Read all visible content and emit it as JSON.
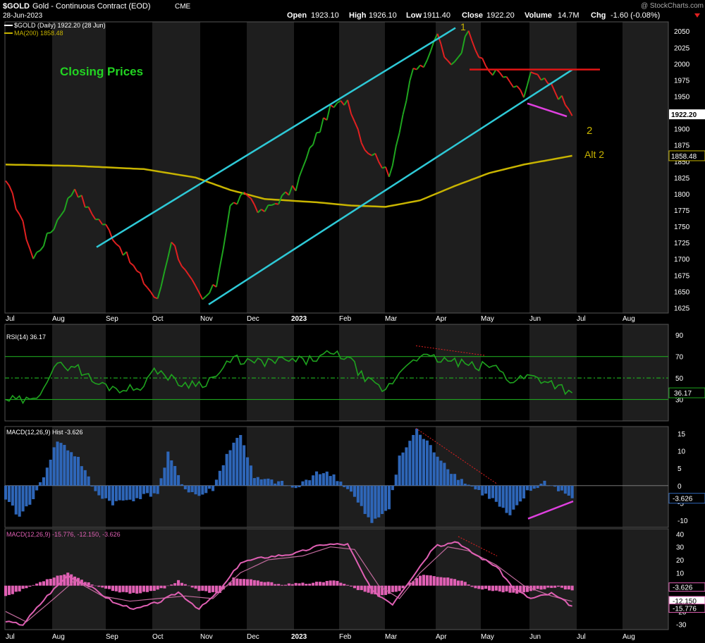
{
  "header": {
    "symbol": "$GOLD",
    "name": "Gold - Continuous Contract (EOD)",
    "exchange": "CME",
    "date": "28-Jun-2023",
    "watermark": "@ StockCharts.com",
    "open_label": "Open",
    "open": "1923.10",
    "high_label": "High",
    "high": "1926.10",
    "low_label": "Low",
    "low": "1911.40",
    "close_label": "Close",
    "close": "1922.20",
    "volume_label": "Volume",
    "volume": "14.7M",
    "chg_label": "Chg",
    "chg": "-1.60 (-0.08%)"
  },
  "colors": {
    "background": "#000000",
    "band": "#1e1e1e",
    "up": "#1fa51f",
    "down": "#e02020",
    "ma": "#c8b400",
    "channel": "#2ec9d6",
    "resistance": "#e01515",
    "divergence": "#e040e0",
    "rsi": "#1ea21e",
    "macd_hist": "#2e66b8",
    "macd2": "#e060b4",
    "label_green": "#22d422",
    "wave": "#c8b400"
  },
  "x_axis": {
    "labels": [
      "Jul",
      "Aug",
      "Sep",
      "Oct",
      "Nov",
      "Dec",
      "2023",
      "Feb",
      "Mar",
      "Apr",
      "May",
      "Jun",
      "Jul",
      "Aug"
    ],
    "bold": [
      "2023"
    ]
  },
  "chart_data": [
    {
      "type": "line",
      "panel": "price",
      "title": "$GOLD (Daily) 1922.20 (28 Jun)",
      "ma_legend": "MA(200) 1858.48",
      "annotation": "Closing Prices",
      "wave_labels": [
        "1",
        "2",
        "Alt 2"
      ],
      "y_ticks": [
        2050,
        2025,
        2000,
        1975,
        1950,
        1925,
        1900,
        1875,
        1850,
        1825,
        1800,
        1775,
        1750,
        1725,
        1700,
        1675,
        1650,
        1625
      ],
      "ylim": [
        1620,
        2060
      ],
      "last_price_tag": "1922.20",
      "ma_tag": "1858.48",
      "close_anchors": [
        [
          0,
          1820
        ],
        [
          4,
          1770
        ],
        [
          8,
          1700
        ],
        [
          14,
          1750
        ],
        [
          20,
          1810
        ],
        [
          24,
          1775
        ],
        [
          29,
          1750
        ],
        [
          33,
          1720
        ],
        [
          38,
          1680
        ],
        [
          44,
          1635
        ],
        [
          48,
          1730
        ],
        [
          52,
          1680
        ],
        [
          57,
          1635
        ],
        [
          61,
          1660
        ],
        [
          65,
          1780
        ],
        [
          70,
          1800
        ],
        [
          74,
          1770
        ],
        [
          79,
          1790
        ],
        [
          84,
          1810
        ],
        [
          89,
          1880
        ],
        [
          94,
          1930
        ],
        [
          99,
          1945
        ],
        [
          104,
          1870
        ],
        [
          108,
          1855
        ],
        [
          111,
          1825
        ],
        [
          114,
          1900
        ],
        [
          118,
          1990
        ],
        [
          122,
          2000
        ],
        [
          125,
          2050
        ],
        [
          128,
          2000
        ],
        [
          132,
          2020
        ],
        [
          134,
          2050
        ],
        [
          137,
          2010
        ],
        [
          140,
          1990
        ],
        [
          143,
          1985
        ],
        [
          147,
          1965
        ],
        [
          150,
          1950
        ],
        [
          152,
          1985
        ],
        [
          155,
          1975
        ],
        [
          158,
          1965
        ],
        [
          161,
          1945
        ],
        [
          164,
          1920
        ]
      ],
      "ma_anchors": [
        [
          0,
          1845
        ],
        [
          20,
          1843
        ],
        [
          40,
          1838
        ],
        [
          55,
          1825
        ],
        [
          65,
          1806
        ],
        [
          75,
          1792
        ],
        [
          90,
          1787
        ],
        [
          100,
          1782
        ],
        [
          110,
          1780
        ],
        [
          120,
          1790
        ],
        [
          130,
          1812
        ],
        [
          140,
          1832
        ],
        [
          150,
          1845
        ],
        [
          164,
          1858.48
        ]
      ]
    },
    {
      "type": "line",
      "panel": "rsi",
      "title": "RSI(14) 36.17",
      "y_ticks": [
        90,
        70,
        50,
        30
      ],
      "ylim": [
        10,
        100
      ],
      "reference_lines": [
        70,
        50,
        30
      ],
      "last_value_tag": "36.17",
      "anchors": [
        [
          0,
          30
        ],
        [
          8,
          28
        ],
        [
          14,
          60
        ],
        [
          20,
          62
        ],
        [
          26,
          45
        ],
        [
          33,
          40
        ],
        [
          38,
          40
        ],
        [
          44,
          58
        ],
        [
          50,
          45
        ],
        [
          57,
          45
        ],
        [
          61,
          52
        ],
        [
          66,
          68
        ],
        [
          72,
          64
        ],
        [
          80,
          66
        ],
        [
          87,
          66
        ],
        [
          94,
          72
        ],
        [
          99,
          70
        ],
        [
          104,
          48
        ],
        [
          110,
          38
        ],
        [
          114,
          55
        ],
        [
          118,
          70
        ],
        [
          124,
          68
        ],
        [
          130,
          65
        ],
        [
          136,
          60
        ],
        [
          141,
          62
        ],
        [
          146,
          48
        ],
        [
          152,
          52
        ],
        [
          158,
          46
        ],
        [
          164,
          36.17
        ]
      ]
    },
    {
      "type": "bar",
      "panel": "macd_hist",
      "title": "MACD(12,26,9) Hist -3.626",
      "y_ticks": [
        15,
        10,
        5,
        0,
        -5,
        -10
      ],
      "ylim": [
        -12,
        17
      ],
      "last_value_tag": "-3.626",
      "anchors": [
        [
          0,
          -4
        ],
        [
          4,
          -9
        ],
        [
          9,
          -2
        ],
        [
          15,
          13
        ],
        [
          21,
          8
        ],
        [
          26,
          -2
        ],
        [
          31,
          -5
        ],
        [
          36,
          -4
        ],
        [
          44,
          -2
        ],
        [
          47,
          9
        ],
        [
          52,
          -1
        ],
        [
          56,
          -3
        ],
        [
          60,
          -1
        ],
        [
          64,
          9
        ],
        [
          68,
          15
        ],
        [
          72,
          2
        ],
        [
          79,
          1
        ],
        [
          84,
          -1
        ],
        [
          90,
          4
        ],
        [
          95,
          3
        ],
        [
          100,
          -2
        ],
        [
          106,
          -11
        ],
        [
          111,
          -6
        ],
        [
          114,
          8
        ],
        [
          119,
          16
        ],
        [
          124,
          10
        ],
        [
          130,
          3
        ],
        [
          136,
          -1
        ],
        [
          141,
          -4
        ],
        [
          146,
          -9
        ],
        [
          151,
          -2
        ],
        [
          156,
          1
        ],
        [
          160,
          -1
        ],
        [
          164,
          -3.626
        ]
      ]
    },
    {
      "type": "line",
      "panel": "macd",
      "title": "MACD(12,26,9) -15.776, -12.150, -3.626",
      "y_ticks": [
        40,
        30,
        20,
        10,
        0,
        -10,
        -20,
        -30
      ],
      "ylim": [
        -34,
        44
      ],
      "tags": [
        "-3.626",
        "-12.150",
        "-15.776"
      ],
      "macd_anchors": [
        [
          0,
          -28
        ],
        [
          5,
          -30
        ],
        [
          12,
          -8
        ],
        [
          18,
          8
        ],
        [
          24,
          0
        ],
        [
          32,
          -14
        ],
        [
          38,
          -18
        ],
        [
          45,
          -12
        ],
        [
          50,
          -5
        ],
        [
          56,
          -18
        ],
        [
          62,
          -4
        ],
        [
          68,
          18
        ],
        [
          75,
          22
        ],
        [
          84,
          25
        ],
        [
          92,
          32
        ],
        [
          99,
          32
        ],
        [
          106,
          -4
        ],
        [
          112,
          -14
        ],
        [
          118,
          8
        ],
        [
          124,
          30
        ],
        [
          130,
          34
        ],
        [
          136,
          24
        ],
        [
          142,
          15
        ],
        [
          147,
          -2
        ],
        [
          152,
          -10
        ],
        [
          158,
          -6
        ],
        [
          164,
          -15.776
        ]
      ],
      "signal_anchors": [
        [
          0,
          -20
        ],
        [
          6,
          -28
        ],
        [
          14,
          -10
        ],
        [
          20,
          4
        ],
        [
          28,
          -8
        ],
        [
          36,
          -12
        ],
        [
          44,
          -10
        ],
        [
          52,
          -8
        ],
        [
          60,
          -10
        ],
        [
          68,
          10
        ],
        [
          76,
          20
        ],
        [
          86,
          23
        ],
        [
          94,
          30
        ],
        [
          101,
          28
        ],
        [
          108,
          0
        ],
        [
          114,
          -10
        ],
        [
          120,
          10
        ],
        [
          128,
          30
        ],
        [
          134,
          27
        ],
        [
          142,
          16
        ],
        [
          150,
          0
        ],
        [
          158,
          -8
        ],
        [
          164,
          -12.15
        ]
      ],
      "hist_anchors": [
        [
          0,
          -8
        ],
        [
          5,
          -3
        ],
        [
          12,
          5
        ],
        [
          18,
          10
        ],
        [
          24,
          2
        ],
        [
          32,
          -5
        ],
        [
          38,
          -6
        ],
        [
          46,
          -2
        ],
        [
          50,
          4
        ],
        [
          56,
          -4
        ],
        [
          62,
          -6
        ],
        [
          66,
          6
        ],
        [
          72,
          4
        ],
        [
          80,
          1
        ],
        [
          88,
          2
        ],
        [
          96,
          4
        ],
        [
          102,
          -3
        ],
        [
          108,
          -8
        ],
        [
          114,
          -4
        ],
        [
          120,
          8
        ],
        [
          126,
          7
        ],
        [
          132,
          4
        ],
        [
          136,
          -2
        ],
        [
          142,
          -4
        ],
        [
          148,
          -6
        ],
        [
          154,
          -3
        ],
        [
          160,
          -1
        ],
        [
          164,
          -3.626
        ]
      ]
    }
  ]
}
